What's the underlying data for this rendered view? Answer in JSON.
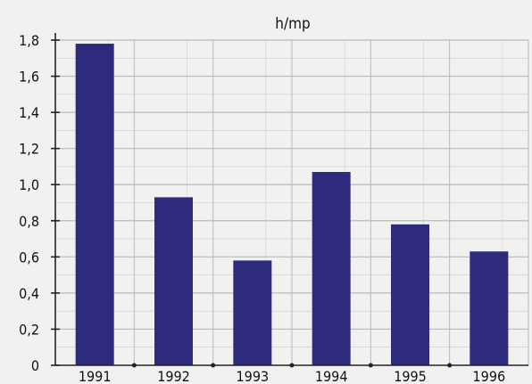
{
  "chart_data": {
    "type": "bar",
    "title": "h/mp",
    "categories": [
      "1991",
      "1992",
      "1993",
      "1994",
      "1995",
      "1996"
    ],
    "values": [
      1.78,
      0.93,
      0.58,
      1.07,
      0.78,
      0.63
    ],
    "ylim": [
      0,
      1.8
    ],
    "yticks": [
      "0",
      "0,2",
      "0,4",
      "0,6",
      "0,8",
      "1,0",
      "1,2",
      "1,4",
      "1,6",
      "1,8"
    ],
    "grid": true,
    "colors": {
      "bar": "#2e2a7c",
      "grid": "#b8bab8",
      "axis": "#222222",
      "background": "#f1f2f0"
    }
  }
}
